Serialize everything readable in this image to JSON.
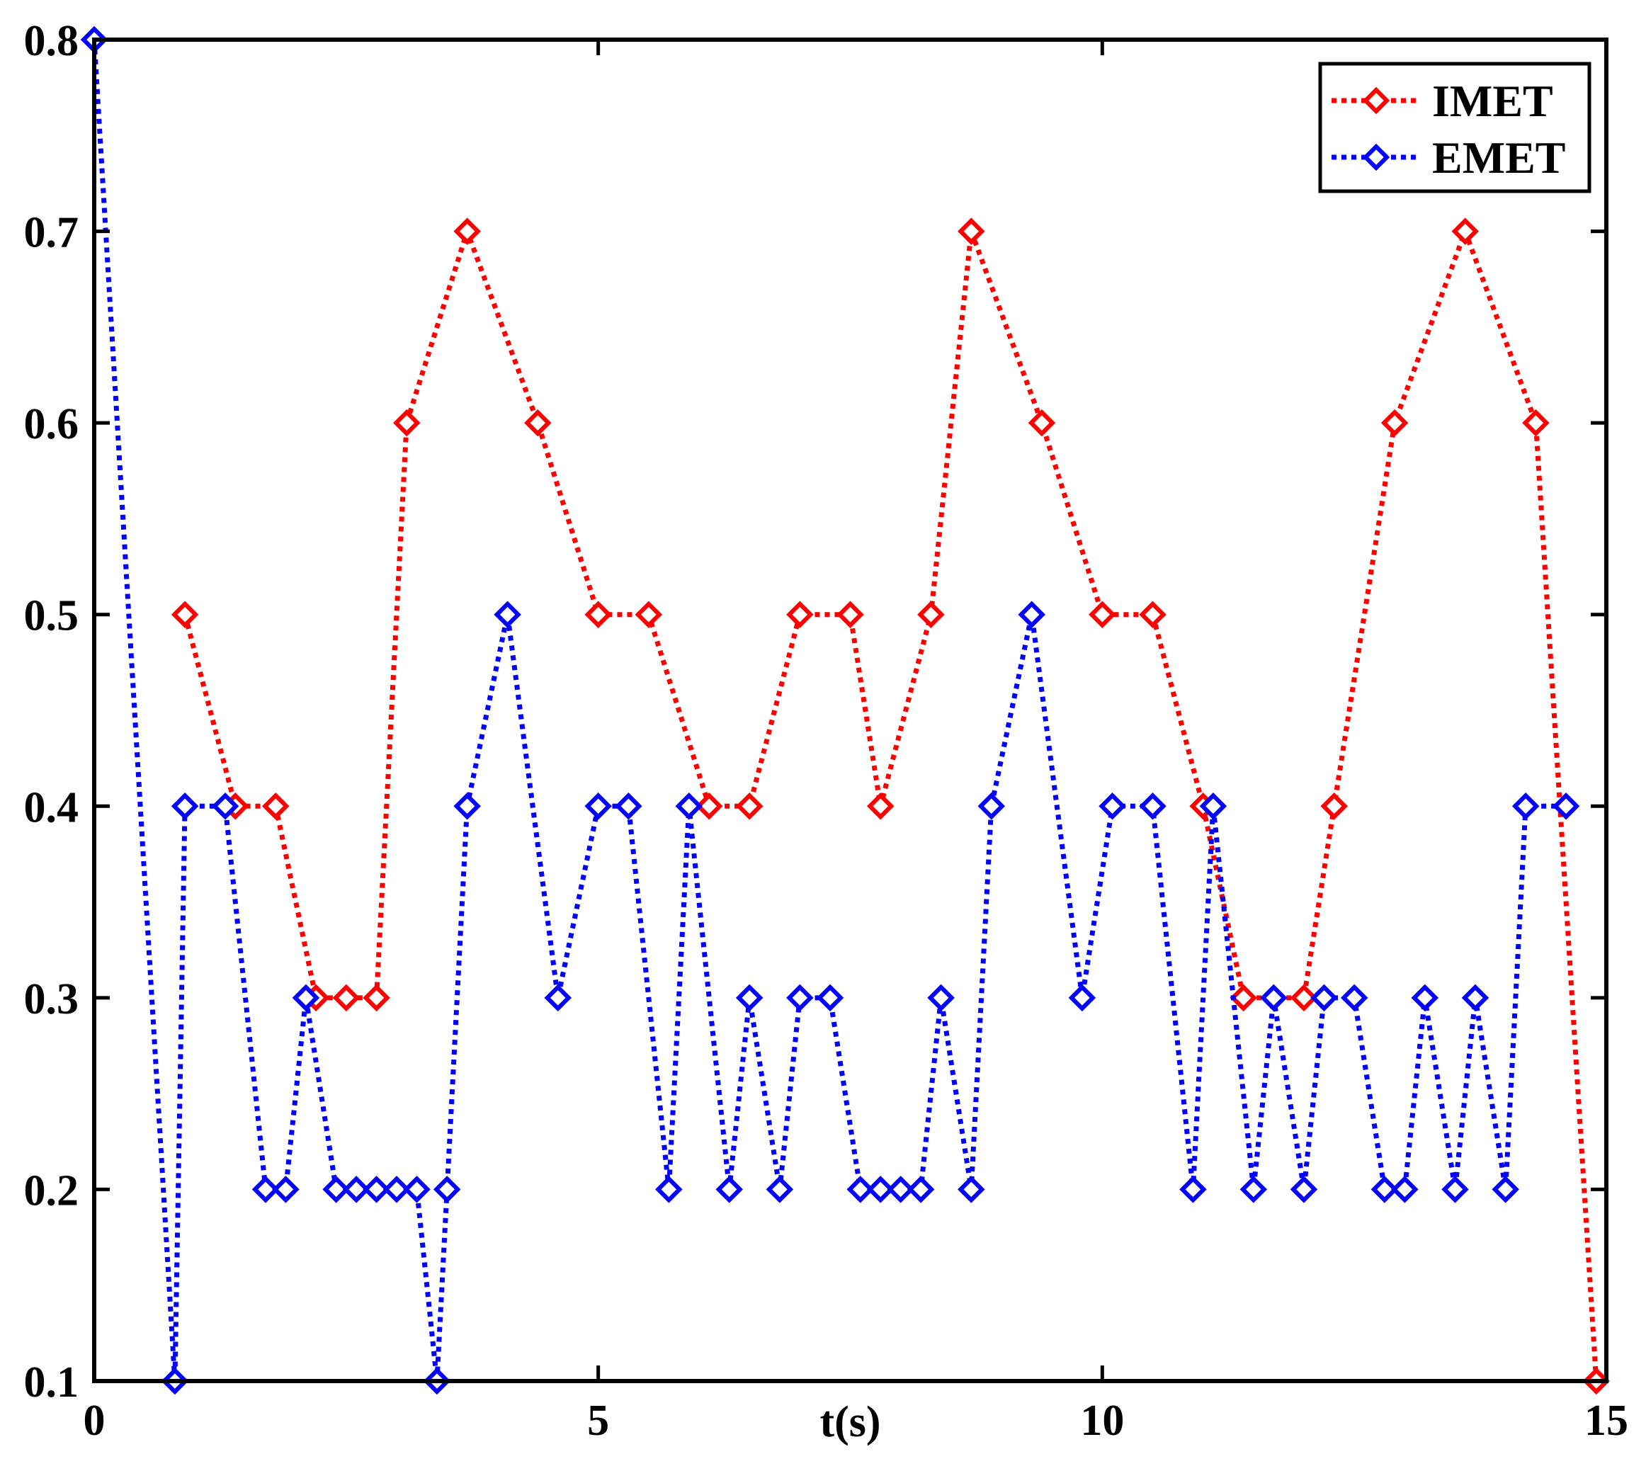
{
  "chart_data": {
    "type": "line",
    "title": "",
    "xlabel": "t(s)",
    "ylabel": "",
    "xlim": [
      0,
      15
    ],
    "ylim": [
      0.1,
      0.8
    ],
    "xticks": [
      0,
      5,
      10,
      15
    ],
    "xtick_labels": [
      "0",
      "5",
      "10",
      "15"
    ],
    "yticks": [
      0.1,
      0.2,
      0.3,
      0.4,
      0.5,
      0.6,
      0.7,
      0.8
    ],
    "ytick_labels": [
      "0.1",
      "0.2",
      "0.3",
      "0.4",
      "0.5",
      "0.6",
      "0.7",
      "0.8"
    ],
    "grid": false,
    "legend": "top-right",
    "line_style": "dotted",
    "marker": "diamond",
    "series": [
      {
        "name": "IMET",
        "color": "#ff0000",
        "points": [
          [
            0.9,
            0.5
          ],
          [
            1.4,
            0.4
          ],
          [
            1.8,
            0.4
          ],
          [
            2.2,
            0.3
          ],
          [
            2.5,
            0.3
          ],
          [
            2.8,
            0.3
          ],
          [
            3.1,
            0.6
          ],
          [
            3.7,
            0.7
          ],
          [
            4.4,
            0.6
          ],
          [
            5.0,
            0.5
          ],
          [
            5.5,
            0.5
          ],
          [
            6.1,
            0.4
          ],
          [
            6.5,
            0.4
          ],
          [
            7.0,
            0.5
          ],
          [
            7.5,
            0.5
          ],
          [
            7.8,
            0.4
          ],
          [
            8.3,
            0.5
          ],
          [
            8.7,
            0.7
          ],
          [
            9.4,
            0.6
          ],
          [
            10.0,
            0.5
          ],
          [
            10.5,
            0.5
          ],
          [
            11.0,
            0.4
          ],
          [
            11.4,
            0.3
          ],
          [
            12.0,
            0.3
          ],
          [
            12.3,
            0.4
          ],
          [
            12.9,
            0.6
          ],
          [
            13.6,
            0.7
          ],
          [
            14.3,
            0.6
          ],
          [
            14.9,
            0.1
          ]
        ]
      },
      {
        "name": "EMET",
        "color": "#0000ff",
        "points": [
          [
            0.0,
            0.8
          ],
          [
            0.8,
            0.1
          ],
          [
            0.9,
            0.4
          ],
          [
            1.3,
            0.4
          ],
          [
            1.7,
            0.2
          ],
          [
            1.9,
            0.2
          ],
          [
            2.1,
            0.3
          ],
          [
            2.4,
            0.2
          ],
          [
            2.6,
            0.2
          ],
          [
            2.8,
            0.2
          ],
          [
            3.0,
            0.2
          ],
          [
            3.2,
            0.2
          ],
          [
            3.4,
            0.1
          ],
          [
            3.5,
            0.2
          ],
          [
            3.7,
            0.4
          ],
          [
            4.1,
            0.5
          ],
          [
            4.6,
            0.3
          ],
          [
            5.0,
            0.4
          ],
          [
            5.3,
            0.4
          ],
          [
            5.7,
            0.2
          ],
          [
            5.9,
            0.4
          ],
          [
            6.3,
            0.2
          ],
          [
            6.5,
            0.3
          ],
          [
            6.8,
            0.2
          ],
          [
            7.0,
            0.3
          ],
          [
            7.3,
            0.3
          ],
          [
            7.6,
            0.2
          ],
          [
            7.8,
            0.2
          ],
          [
            8.0,
            0.2
          ],
          [
            8.2,
            0.2
          ],
          [
            8.4,
            0.3
          ],
          [
            8.7,
            0.2
          ],
          [
            8.9,
            0.4
          ],
          [
            9.3,
            0.5
          ],
          [
            9.8,
            0.3
          ],
          [
            10.1,
            0.4
          ],
          [
            10.5,
            0.4
          ],
          [
            10.9,
            0.2
          ],
          [
            11.1,
            0.4
          ],
          [
            11.5,
            0.2
          ],
          [
            11.7,
            0.3
          ],
          [
            12.0,
            0.2
          ],
          [
            12.2,
            0.3
          ],
          [
            12.5,
            0.3
          ],
          [
            12.8,
            0.2
          ],
          [
            13.0,
            0.2
          ],
          [
            13.2,
            0.3
          ],
          [
            13.5,
            0.2
          ],
          [
            13.7,
            0.3
          ],
          [
            14.0,
            0.2
          ],
          [
            14.2,
            0.4
          ],
          [
            14.6,
            0.4
          ]
        ]
      }
    ]
  }
}
